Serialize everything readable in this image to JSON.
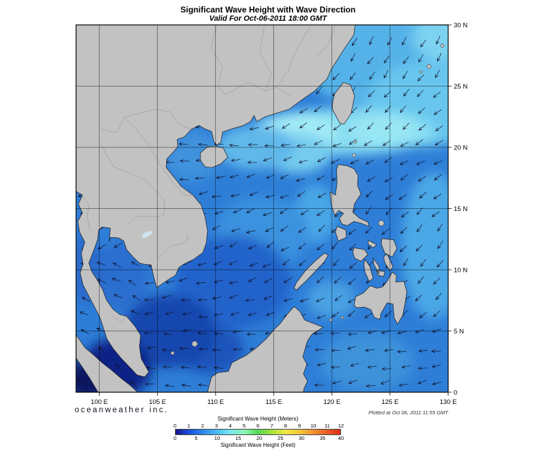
{
  "header": {
    "title": "Significant Wave Height with Wave Direction",
    "subtitle": "Valid For Oct-06-2011 18:00 GMT"
  },
  "footer": {
    "credit": "oceanweather inc.",
    "plotted": "Plotted at Oct 06, 2011 11:55 GMT"
  },
  "map": {
    "lon_min": 98,
    "lon_max": 130,
    "lat_min": 0,
    "lat_max": 30,
    "lon_ticks": [
      {
        "v": 100,
        "label": "100 E"
      },
      {
        "v": 105,
        "label": "105 E"
      },
      {
        "v": 110,
        "label": "110 E"
      },
      {
        "v": 115,
        "label": "115 E"
      },
      {
        "v": 120,
        "label": "120 E"
      },
      {
        "v": 125,
        "label": "125 E"
      },
      {
        "v": 130,
        "label": "130 E"
      }
    ],
    "lat_ticks": [
      {
        "v": 0,
        "label": "0"
      },
      {
        "v": 5,
        "label": "5 N"
      },
      {
        "v": 10,
        "label": "10 N"
      },
      {
        "v": 15,
        "label": "15 N"
      },
      {
        "v": 20,
        "label": "20 N"
      },
      {
        "v": 25,
        "label": "25 N"
      },
      {
        "v": 30,
        "label": "30 N"
      }
    ],
    "colors": {
      "ocean": "#2e7ed7",
      "land": "#c2c2c2",
      "coast": "#1c1c1c",
      "grid": "#000000",
      "arrow": "#10102a",
      "border": "#8f8f8f",
      "lake": "#cfe4f0"
    },
    "wave_field": [
      {
        "lon": 125,
        "lat": 27.5,
        "rlon": 8,
        "rlat": 4.5,
        "color": "#55b2e8"
      },
      {
        "lon": 129.5,
        "lat": 29,
        "rlon": 2.5,
        "rlat": 2,
        "color": "#7cd2f0"
      },
      {
        "lon": 128,
        "lat": 23.5,
        "rlon": 5,
        "rlat": 3.5,
        "color": "#68c6ee"
      },
      {
        "lon": 121,
        "lat": 21.3,
        "rlon": 8,
        "rlat": 1.9,
        "color": "#86dcf2"
      },
      {
        "lon": 117,
        "lat": 21.3,
        "rlon": 3.6,
        "rlat": 1.4,
        "color": "#a2eaf6"
      },
      {
        "lon": 124.5,
        "lat": 21.4,
        "rlon": 3,
        "rlat": 1.3,
        "color": "#98e6f4"
      },
      {
        "lon": 117,
        "lat": 19.5,
        "rlon": 3,
        "rlat": 1.6,
        "color": "#74ccee"
      },
      {
        "lon": 113.5,
        "lat": 20,
        "rlon": 3.4,
        "rlat": 1.8,
        "color": "#60b8ea"
      },
      {
        "lon": 128.8,
        "lat": 12,
        "rlon": 2.8,
        "rlat": 6,
        "color": "#4ca8e6"
      },
      {
        "lon": 118.6,
        "lat": 14.6,
        "rlon": 1.8,
        "rlat": 2.4,
        "color": "#4aa6e6"
      },
      {
        "lon": 108,
        "lat": 19.3,
        "rlon": 2.4,
        "rlat": 2.1,
        "color": "#3f92dd"
      },
      {
        "lon": 114,
        "lat": 13,
        "rlon": 4,
        "rlat": 3,
        "color": "#3a92de"
      },
      {
        "lon": 111.5,
        "lat": 9,
        "rlon": 5,
        "rlat": 3.8,
        "color": "#2264cb"
      },
      {
        "lon": 109.5,
        "lat": 3.5,
        "rlon": 3,
        "rlat": 2,
        "color": "#1d54bc"
      },
      {
        "lon": 106,
        "lat": 5,
        "rlon": 4,
        "rlat": 3,
        "color": "#1747ae"
      },
      {
        "lon": 101.8,
        "lat": 9.5,
        "rlon": 2.3,
        "rlat": 2.8,
        "color": "#2a6ecf"
      },
      {
        "lon": 98.8,
        "lat": 10,
        "rlon": 1.4,
        "rlat": 2.8,
        "color": "#2a6acb"
      },
      {
        "lon": 101.5,
        "lat": 2,
        "rlon": 3,
        "rlat": 2.4,
        "color": "#0d2386"
      },
      {
        "lon": 99,
        "lat": 1,
        "rlon": 1.9,
        "rlat": 1.6,
        "color": "#081660"
      },
      {
        "lon": 120,
        "lat": 7.6,
        "rlon": 2.1,
        "rlat": 1.5,
        "color": "#49a0e2"
      },
      {
        "lon": 123,
        "lat": 2.5,
        "rlon": 4,
        "rlat": 2.4,
        "color": "#3c92da"
      }
    ],
    "arrows": {
      "lon_step": 1.45,
      "lat_step": 1.4,
      "length": 13
    }
  },
  "legend": {
    "title_meters": "Significant Wave Height (Meters)",
    "title_feet": "Significant Wave Height (Feet)",
    "meters_ticks": [
      "0",
      "1",
      "2",
      "3",
      "4",
      "5",
      "6",
      "7",
      "8",
      "9",
      "10",
      "11",
      "12"
    ],
    "feet_ticks": [
      0,
      5,
      10,
      15,
      20,
      25,
      30,
      35,
      40
    ],
    "meters_max": 12,
    "gradient": [
      "#101689",
      "#1d4ee0",
      "#2b8ae9",
      "#48bdf0",
      "#79e6f2",
      "#8df5b2",
      "#52d852",
      "#a8e042",
      "#eeea45",
      "#f2c83c",
      "#f29332",
      "#ea5f2a",
      "#dd2a1b"
    ]
  }
}
